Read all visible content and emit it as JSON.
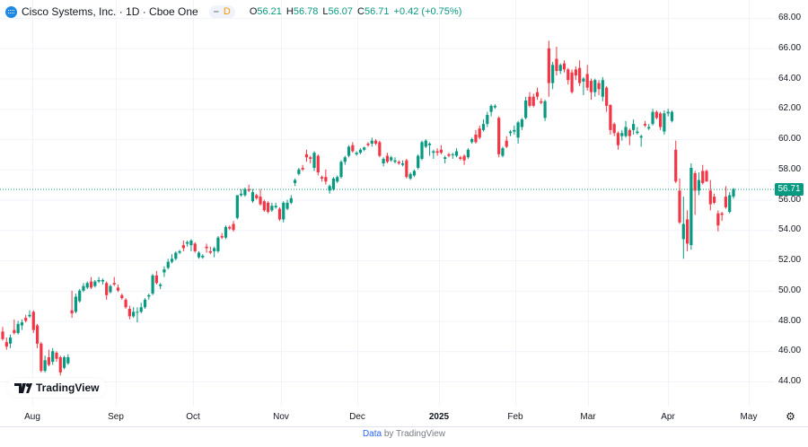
{
  "header": {
    "title": "Cisco Systems, Inc. · 1D · Cboe One",
    "interval_badge": "D",
    "logo_icon": "cisco-logo-icon",
    "ohlc": {
      "o_label": "O",
      "o": "56.21",
      "h_label": "H",
      "h": "56.78",
      "l_label": "L",
      "l": "56.07",
      "c_label": "C",
      "c": "56.71",
      "change": "+0.42 (+0.75%)"
    }
  },
  "branding": {
    "logo_text": "TradingView"
  },
  "footer": {
    "data_link": "Data",
    "by_text": "by TradingView"
  },
  "settings_icon": "gear-icon",
  "colors": {
    "up": "#089981",
    "down": "#f23645",
    "grid": "#f0f3fa",
    "last_price": "#089981"
  },
  "chart_data": {
    "type": "candlestick",
    "title": "",
    "last_price": "56.71",
    "y_ticks": [
      "68.00",
      "66.00",
      "64.00",
      "62.00",
      "60.00",
      "58.00",
      "56.00",
      "54.00",
      "52.00",
      "50.00",
      "48.00",
      "46.00",
      "44.00"
    ],
    "ylim": [
      43,
      69
    ],
    "x_ticks": [
      "Aug",
      "Sep",
      "Oct",
      "Nov",
      "Dec",
      "2025",
      "Feb",
      "Mar",
      "Apr",
      "May"
    ],
    "grid": true,
    "ohlc_columns": [
      "open",
      "high",
      "low",
      "close"
    ],
    "ohlc": [
      [
        47.3,
        47.6,
        46.7,
        46.8
      ],
      [
        46.6,
        46.9,
        46.1,
        46.3
      ],
      [
        46.5,
        47.1,
        46.2,
        46.9
      ],
      [
        47.4,
        48.1,
        47.1,
        47.2
      ],
      [
        47.2,
        48.0,
        47.1,
        47.8
      ],
      [
        47.7,
        48.1,
        47.4,
        47.9
      ],
      [
        48.2,
        48.4,
        47.9,
        48.0
      ],
      [
        48.3,
        48.7,
        48.2,
        48.4
      ],
      [
        48.6,
        48.7,
        47.2,
        47.4
      ],
      [
        47.7,
        47.8,
        46.2,
        46.5
      ],
      [
        46.5,
        46.6,
        44.6,
        44.7
      ],
      [
        44.7,
        45.7,
        44.6,
        45.4
      ],
      [
        45.6,
        46.1,
        45.0,
        45.1
      ],
      [
        45.3,
        46.2,
        45.1,
        46.0
      ],
      [
        45.9,
        46.0,
        45.3,
        45.5
      ],
      [
        45.6,
        45.7,
        44.4,
        44.6
      ],
      [
        44.9,
        45.7,
        44.8,
        45.6
      ],
      [
        45.2,
        45.8,
        45.1,
        45.6
      ],
      [
        48.7,
        50.0,
        48.2,
        48.5
      ],
      [
        48.6,
        49.8,
        48.5,
        49.6
      ],
      [
        49.3,
        50.1,
        49.2,
        50.0
      ],
      [
        50.0,
        50.5,
        49.9,
        50.3
      ],
      [
        50.2,
        50.6,
        50.1,
        50.5
      ],
      [
        50.6,
        50.9,
        50.1,
        50.2
      ],
      [
        50.3,
        50.7,
        50.2,
        50.6
      ],
      [
        50.6,
        50.9,
        50.5,
        50.7
      ],
      [
        50.6,
        50.8,
        50.4,
        50.7
      ],
      [
        50.5,
        50.6,
        49.4,
        49.7
      ],
      [
        49.9,
        50.4,
        49.8,
        50.3
      ],
      [
        50.5,
        50.9,
        50.3,
        50.4
      ],
      [
        50.2,
        50.4,
        49.9,
        50.0
      ],
      [
        49.7,
        49.8,
        49.4,
        49.5
      ],
      [
        49.4,
        49.5,
        48.8,
        48.9
      ],
      [
        48.8,
        49.0,
        48.1,
        48.3
      ],
      [
        48.3,
        48.9,
        48.2,
        48.6
      ],
      [
        48.6,
        48.9,
        47.9,
        48.6
      ],
      [
        48.6,
        49.2,
        48.5,
        48.9
      ],
      [
        48.9,
        49.5,
        48.8,
        49.4
      ],
      [
        49.6,
        49.8,
        49.4,
        49.7
      ],
      [
        49.8,
        51.1,
        49.7,
        51.0
      ],
      [
        51.0,
        51.3,
        50.4,
        50.5
      ],
      [
        50.3,
        50.5,
        50.1,
        50.4
      ],
      [
        51.2,
        51.6,
        50.9,
        51.4
      ],
      [
        51.5,
        52.1,
        51.4,
        51.9
      ],
      [
        51.9,
        52.4,
        51.8,
        52.1
      ],
      [
        52.1,
        52.6,
        52.0,
        52.5
      ],
      [
        52.5,
        52.7,
        52.4,
        52.6
      ],
      [
        53.0,
        53.3,
        52.6,
        52.8
      ],
      [
        53.1,
        53.3,
        52.9,
        53.2
      ],
      [
        53.0,
        53.4,
        52.6,
        53.3
      ],
      [
        53.1,
        53.2,
        52.5,
        52.6
      ],
      [
        52.2,
        52.6,
        52.1,
        52.5
      ],
      [
        52.2,
        52.4,
        52.1,
        52.3
      ],
      [
        52.9,
        53.1,
        52.5,
        52.8
      ],
      [
        52.6,
        52.9,
        52.4,
        52.5
      ],
      [
        52.6,
        52.9,
        52.2,
        52.8
      ],
      [
        52.6,
        53.6,
        52.5,
        53.5
      ],
      [
        53.6,
        53.8,
        53.4,
        53.5
      ],
      [
        53.5,
        54.3,
        53.4,
        54.2
      ],
      [
        54.2,
        54.3,
        54.0,
        54.1
      ],
      [
        54.4,
        54.6,
        53.9,
        54.0
      ],
      [
        54.8,
        56.3,
        54.7,
        56.3
      ],
      [
        56.3,
        56.7,
        56.2,
        56.4
      ],
      [
        56.3,
        56.8,
        56.2,
        56.7
      ],
      [
        56.7,
        57.0,
        56.5,
        56.6
      ],
      [
        55.9,
        56.7,
        55.8,
        56.5
      ],
      [
        56.3,
        56.4,
        56.0,
        56.1
      ],
      [
        56.2,
        56.7,
        55.6,
        55.7
      ],
      [
        55.9,
        56.0,
        55.2,
        55.3
      ],
      [
        55.8,
        55.9,
        55.1,
        55.2
      ],
      [
        55.3,
        55.8,
        55.2,
        55.6
      ],
      [
        55.5,
        55.8,
        55.4,
        55.6
      ],
      [
        55.4,
        55.5,
        54.6,
        54.7
      ],
      [
        54.7,
        55.9,
        54.5,
        55.8
      ],
      [
        55.4,
        56.0,
        55.3,
        55.8
      ],
      [
        55.8,
        56.3,
        55.7,
        56.1
      ],
      [
        57.1,
        57.4,
        56.9,
        57.3
      ],
      [
        57.7,
        58.1,
        57.6,
        58.0
      ],
      [
        58.1,
        58.3,
        57.9,
        58.0
      ],
      [
        59.0,
        59.3,
        58.5,
        58.8
      ],
      [
        58.8,
        58.9,
        58.4,
        58.7
      ],
      [
        58.1,
        59.2,
        57.9,
        59.1
      ],
      [
        58.9,
        59.0,
        57.6,
        57.8
      ],
      [
        57.5,
        57.6,
        57.2,
        57.4
      ],
      [
        57.5,
        58.0,
        57.0,
        57.2
      ],
      [
        56.6,
        57.0,
        56.4,
        56.9
      ],
      [
        56.7,
        57.5,
        56.6,
        57.4
      ],
      [
        57.2,
        57.6,
        57.1,
        57.5
      ],
      [
        57.5,
        58.6,
        57.4,
        58.5
      ],
      [
        58.5,
        58.9,
        58.3,
        58.8
      ],
      [
        58.9,
        59.6,
        58.8,
        59.5
      ],
      [
        59.6,
        59.8,
        59.1,
        59.2
      ],
      [
        59.0,
        59.2,
        58.9,
        59.1
      ],
      [
        59.1,
        59.4,
        59.0,
        59.3
      ],
      [
        59.3,
        59.5,
        59.2,
        59.45
      ],
      [
        59.7,
        59.8,
        59.5,
        59.6
      ],
      [
        59.7,
        60.1,
        59.5,
        59.9
      ],
      [
        59.9,
        60.0,
        59.6,
        59.7
      ],
      [
        59.8,
        59.9,
        58.8,
        58.9
      ],
      [
        58.4,
        58.8,
        58.2,
        58.7
      ],
      [
        58.9,
        59.1,
        58.4,
        58.5
      ],
      [
        58.6,
        58.9,
        58.5,
        58.8
      ],
      [
        58.5,
        58.8,
        58.4,
        58.6
      ],
      [
        58.5,
        58.6,
        58.3,
        58.4
      ],
      [
        58.3,
        58.6,
        58.2,
        58.4
      ],
      [
        58.6,
        58.7,
        57.4,
        57.5
      ],
      [
        57.4,
        57.8,
        57.3,
        57.7
      ],
      [
        57.6,
        58.0,
        57.5,
        57.9
      ],
      [
        58.1,
        59.0,
        58.0,
        58.9
      ],
      [
        58.7,
        59.9,
        58.6,
        59.8
      ],
      [
        59.5,
        60.0,
        59.4,
        59.9
      ],
      [
        59.6,
        59.8,
        58.9,
        59.7
      ],
      [
        59.1,
        59.3,
        58.7,
        59.2
      ],
      [
        59.2,
        59.4,
        58.9,
        59.1
      ],
      [
        59.3,
        59.6,
        59.0,
        59.1
      ],
      [
        58.7,
        58.9,
        58.4,
        58.8
      ],
      [
        59.0,
        59.1,
        58.8,
        58.9
      ],
      [
        59.0,
        59.1,
        58.7,
        59.0
      ],
      [
        58.9,
        59.4,
        58.8,
        59.2
      ],
      [
        58.8,
        58.9,
        58.6,
        58.7
      ],
      [
        58.9,
        59.0,
        58.3,
        58.6
      ],
      [
        58.8,
        59.4,
        58.7,
        59.3
      ],
      [
        59.8,
        60.1,
        59.7,
        60.0
      ],
      [
        60.3,
        60.6,
        59.7,
        59.8
      ],
      [
        60.7,
        60.9,
        60.0,
        60.1
      ],
      [
        60.6,
        61.3,
        60.5,
        61.0
      ],
      [
        61.0,
        61.8,
        60.8,
        61.6
      ],
      [
        61.8,
        62.3,
        61.5,
        62.2
      ],
      [
        62.1,
        62.3,
        62.0,
        62.2
      ],
      [
        61.4,
        61.5,
        58.8,
        59.0
      ],
      [
        58.9,
        59.5,
        58.8,
        59.4
      ],
      [
        59.9,
        60.2,
        59.4,
        59.5
      ],
      [
        60.4,
        60.6,
        60.2,
        60.5
      ],
      [
        60.5,
        60.9,
        60.3,
        60.6
      ],
      [
        60.1,
        61.2,
        59.7,
        61.1
      ],
      [
        60.8,
        61.4,
        60.6,
        61.3
      ],
      [
        61.4,
        62.8,
        61.3,
        62.55
      ],
      [
        62.8,
        63.1,
        62.1,
        62.2
      ],
      [
        62.8,
        63.0,
        62.1,
        62.2
      ],
      [
        63.1,
        63.4,
        62.6,
        62.8
      ],
      [
        62.5,
        62.7,
        62.3,
        62.4
      ],
      [
        61.4,
        62.6,
        61.2,
        62.5
      ],
      [
        66.0,
        66.5,
        62.8,
        63.7
      ],
      [
        63.7,
        65.1,
        63.3,
        64.9
      ],
      [
        65.3,
        66.1,
        64.2,
        64.5
      ],
      [
        64.5,
        65.0,
        64.3,
        64.9
      ],
      [
        65.0,
        65.2,
        64.4,
        64.6
      ],
      [
        64.6,
        64.7,
        63.6,
        63.9
      ],
      [
        64.4,
        64.6,
        63.0,
        63.1
      ],
      [
        64.6,
        64.8,
        63.9,
        64.2
      ],
      [
        64.7,
        65.2,
        63.5,
        63.7
      ],
      [
        63.8,
        64.1,
        62.9,
        64.0
      ],
      [
        64.3,
        64.9,
        63.2,
        63.4
      ],
      [
        63.85,
        64.0,
        62.6,
        63.1
      ],
      [
        63.1,
        64.0,
        62.8,
        63.9
      ],
      [
        63.7,
        63.9,
        62.9,
        63.3
      ],
      [
        62.8,
        64.1,
        62.5,
        63.9
      ],
      [
        63.4,
        63.5,
        61.8,
        62.2
      ],
      [
        62.25,
        62.3,
        60.3,
        60.6
      ],
      [
        61.0,
        61.1,
        60.2,
        60.4
      ],
      [
        60.4,
        60.5,
        59.3,
        59.6
      ],
      [
        60.2,
        60.6,
        59.9,
        60.4
      ],
      [
        60.2,
        61.2,
        60.1,
        60.8
      ],
      [
        60.6,
        60.7,
        59.6,
        60.2
      ],
      [
        60.6,
        61.3,
        60.3,
        61.0
      ],
      [
        60.4,
        60.8,
        60.3,
        60.5
      ],
      [
        60.1,
        60.3,
        59.5,
        60.2
      ],
      [
        61.0,
        61.2,
        60.8,
        60.9
      ],
      [
        60.7,
        61.0,
        60.6,
        60.8
      ],
      [
        61.0,
        62.0,
        60.9,
        61.8
      ],
      [
        61.8,
        61.9,
        61.3,
        61.4
      ],
      [
        61.7,
        61.8,
        60.6,
        60.8
      ],
      [
        60.5,
        61.9,
        60.3,
        61.7
      ],
      [
        61.7,
        62.0,
        61.5,
        61.8
      ],
      [
        61.2,
        61.9,
        61.1,
        61.8
      ],
      [
        59.3,
        59.9,
        57.1,
        57.2
      ],
      [
        56.6,
        57.4,
        54.4,
        54.5
      ],
      [
        53.4,
        56.2,
        52.1,
        54.4
      ],
      [
        54.7,
        55.3,
        52.6,
        53.1
      ],
      [
        53.0,
        58.4,
        52.7,
        58.1
      ],
      [
        57.75,
        57.9,
        55.0,
        56.6
      ],
      [
        56.6,
        57.8,
        56.3,
        57.3
      ],
      [
        57.9,
        58.3,
        57.0,
        57.1
      ],
      [
        57.9,
        58.0,
        57.2,
        57.2
      ],
      [
        56.6,
        57.3,
        55.3,
        55.7
      ],
      [
        56.2,
        56.4,
        55.7,
        55.8
      ],
      [
        55.1,
        55.3,
        53.9,
        54.3
      ],
      [
        55.1,
        55.2,
        54.6,
        55.0
      ],
      [
        56.2,
        56.9,
        55.4,
        55.5
      ],
      [
        55.2,
        56.5,
        55.1,
        56.3
      ],
      [
        56.21,
        56.78,
        56.07,
        56.71
      ]
    ]
  }
}
